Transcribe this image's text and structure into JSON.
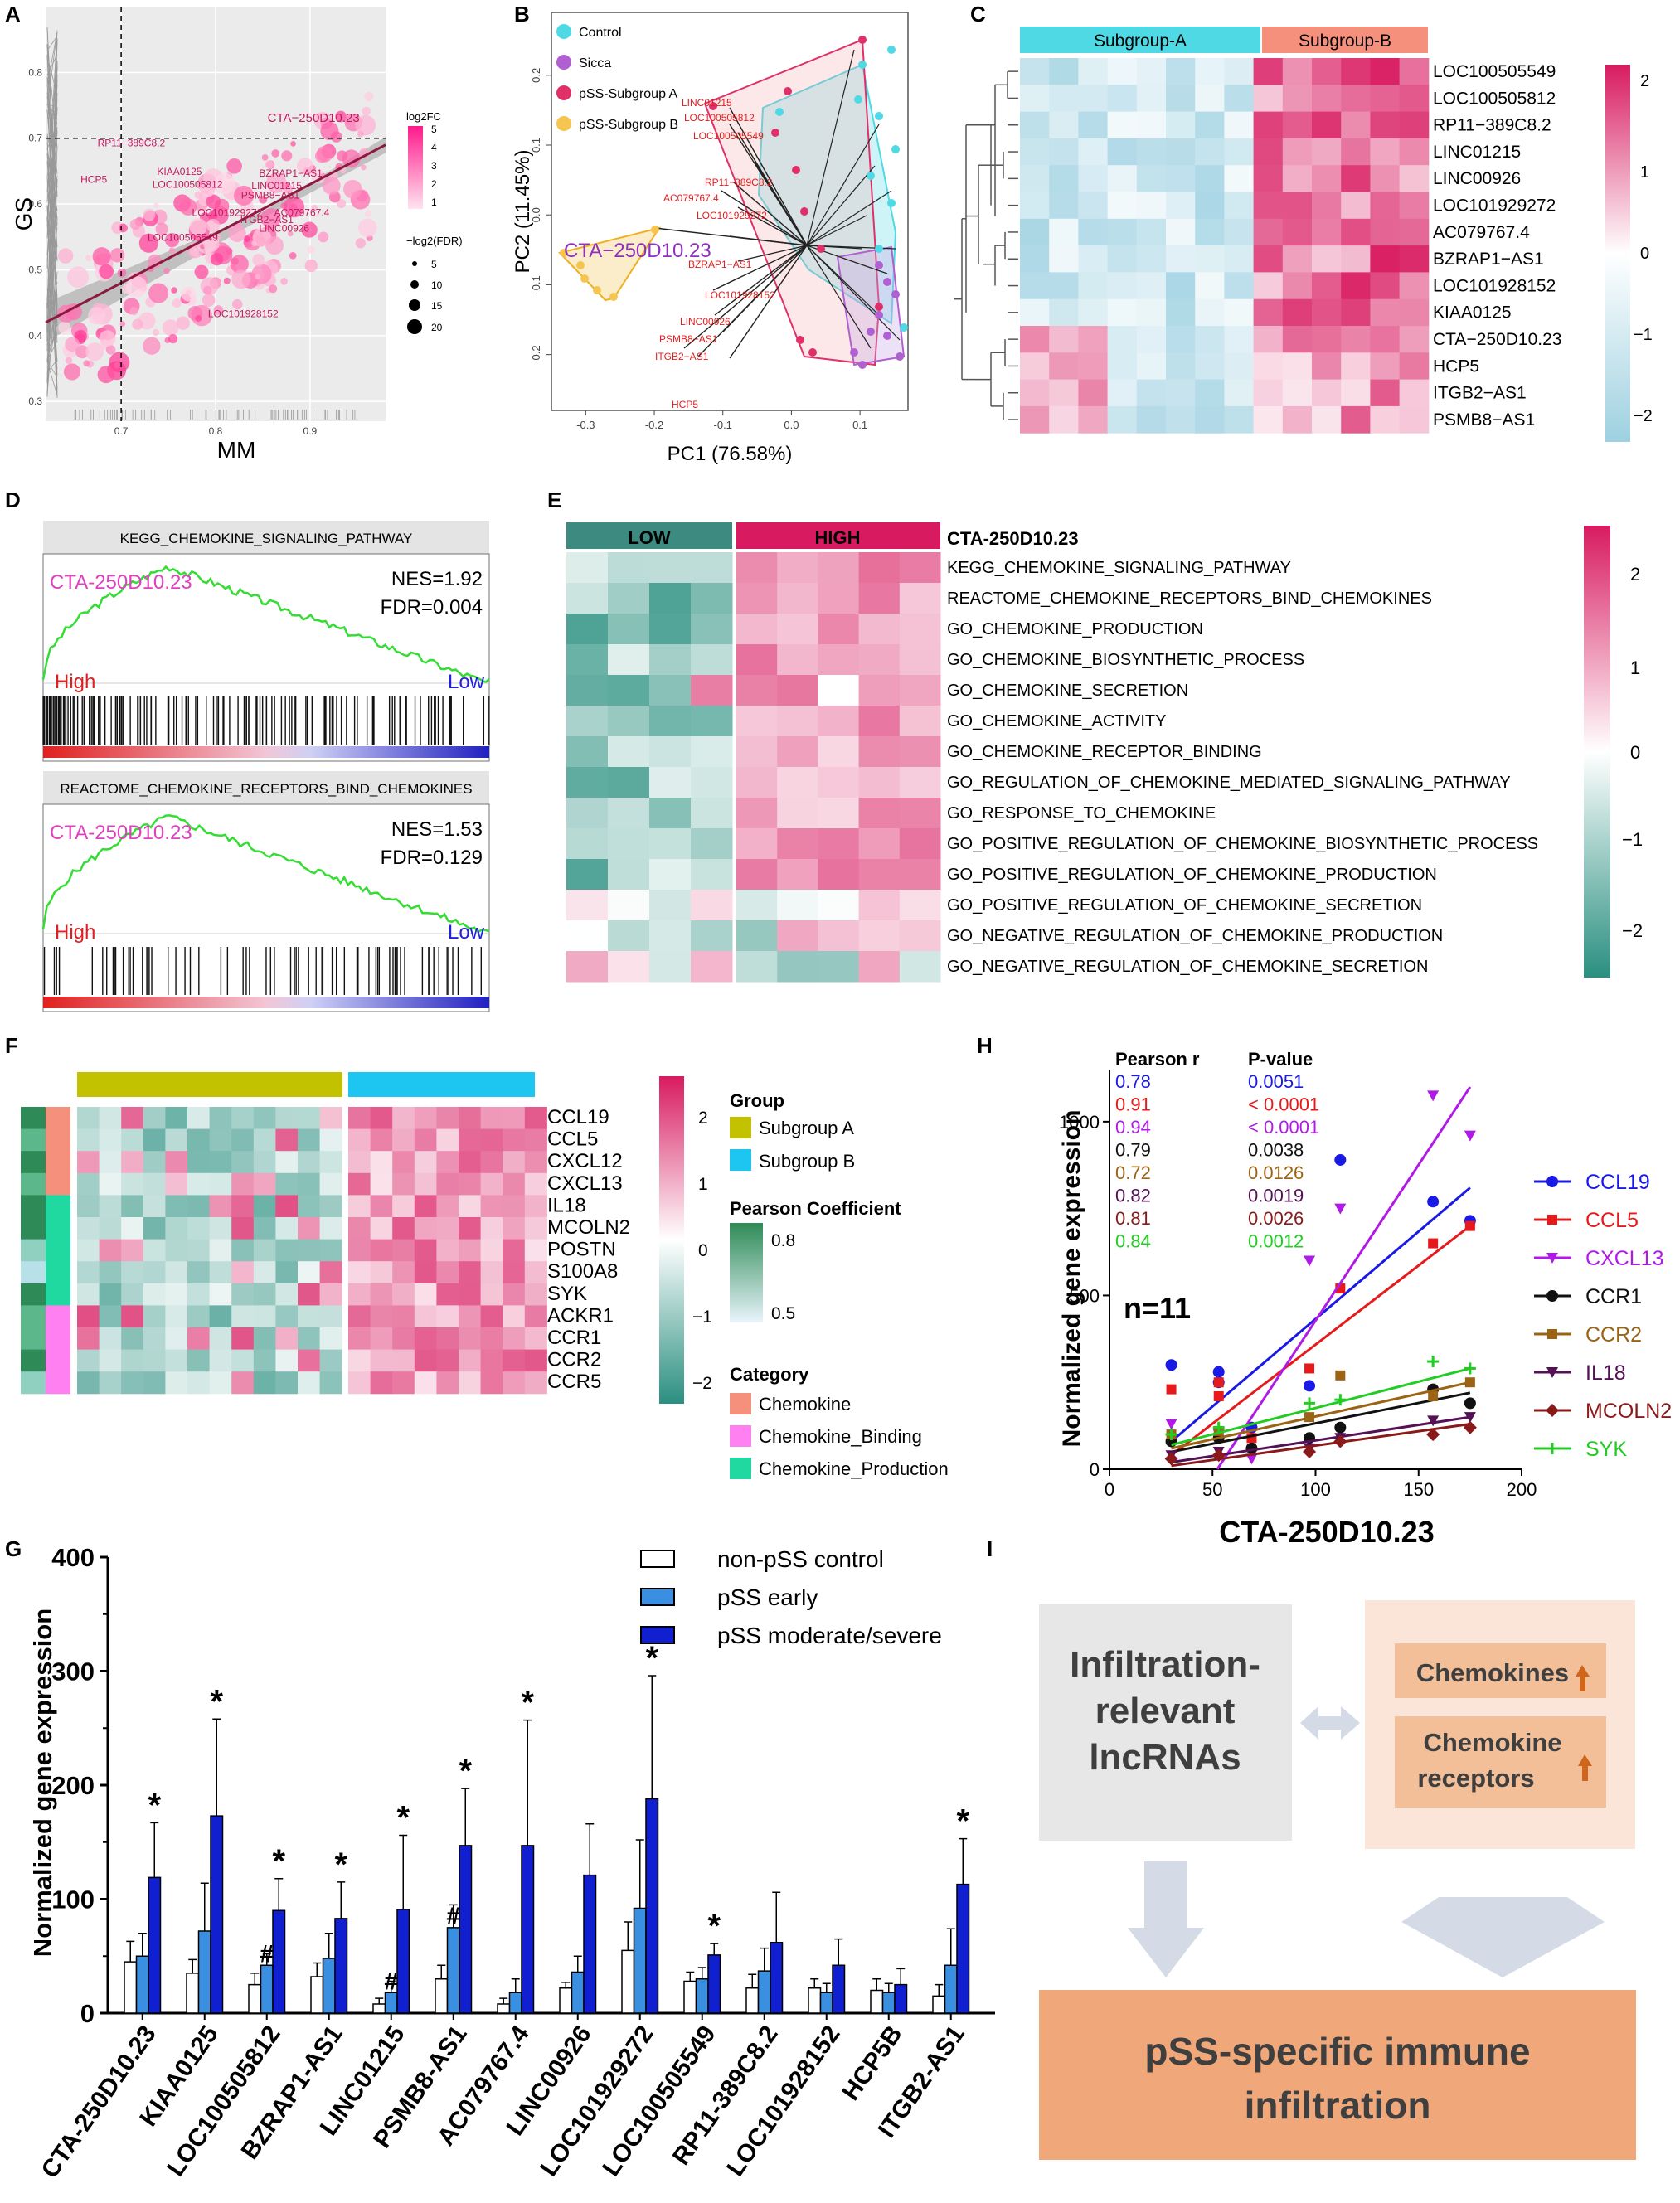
{
  "panel_labels": [
    "A",
    "B",
    "C",
    "D",
    "E",
    "F",
    "G",
    "H",
    "I"
  ],
  "colors": {
    "heat_low": "#9ed0e0",
    "heat_mid": "#ffffff",
    "heat_high": "#d81b60",
    "teal_low": "#2a8f80",
    "subgroupA": "#4fd9e4",
    "subgroupB": "#f4907c",
    "groupA_bar": "#c2c200",
    "groupB_bar": "#1cc6f0",
    "pss_early": "#3a8fe0",
    "pss_mod": "#1020d0",
    "gsea_line": "#33dd33",
    "arrow": "#d4dbe6",
    "box_left": "#e7e7e7",
    "box_right_bg": "#fbe5d8",
    "box_right_item": "#f2bf98",
    "box_bottom": "#f0a87a",
    "up_arrow": "#d0661b"
  },
  "chart_data": [
    {
      "panel": "A",
      "type": "scatter",
      "xlabel": "MM",
      "ylabel": "GS",
      "xlim": [
        0.62,
        0.98
      ],
      "ylim": [
        0.27,
        0.9
      ],
      "xticks": [
        "0.7",
        "0.8",
        "0.9"
      ],
      "yticks": [
        "0.3",
        "0.4",
        "0.5",
        "0.6",
        "0.7",
        "0.8"
      ],
      "thresholds": {
        "x": 0.7,
        "y": 0.7
      },
      "legend_color_title": "log2FC",
      "legend_color_ticks": [
        "5",
        "4",
        "3",
        "2",
        "1"
      ],
      "legend_size_title": "−log2(FDR)",
      "legend_size_ticks": [
        "5",
        "10",
        "15",
        "20"
      ],
      "labels": [
        {
          "text": "CTA−250D10.23",
          "x": 0.855,
          "y": 0.725
        },
        {
          "text": "RP11−389C8.2",
          "x": 0.675,
          "y": 0.688
        },
        {
          "text": "HCP5",
          "x": 0.657,
          "y": 0.632
        },
        {
          "text": "KIAA0125",
          "x": 0.738,
          "y": 0.644
        },
        {
          "text": "BZRAP1−AS1",
          "x": 0.846,
          "y": 0.642
        },
        {
          "text": "LOC100505812",
          "x": 0.733,
          "y": 0.625
        },
        {
          "text": "LINC01215",
          "x": 0.838,
          "y": 0.623
        },
        {
          "text": "PSMB8−AS1",
          "x": 0.827,
          "y": 0.608
        },
        {
          "text": "AC079767.4",
          "x": 0.862,
          "y": 0.582
        },
        {
          "text": "LOC101929272",
          "x": 0.775,
          "y": 0.582
        },
        {
          "text": "ITGB2−AS1",
          "x": 0.826,
          "y": 0.571
        },
        {
          "text": "LINC00926",
          "x": 0.846,
          "y": 0.558
        },
        {
          "text": "LOC100505549",
          "x": 0.728,
          "y": 0.544
        },
        {
          "text": "LOC101928152",
          "x": 0.792,
          "y": 0.428
        }
      ],
      "fit": {
        "x1": 0.62,
        "y1": 0.42,
        "x2": 0.98,
        "y2": 0.69
      }
    },
    {
      "panel": "B",
      "type": "scatter",
      "xlabel": "PC1 (76.58%)",
      "ylabel": "PC2 (11.45%)",
      "xlim": [
        -0.35,
        0.17
      ],
      "ylim": [
        -0.28,
        0.29
      ],
      "xticks": [
        "-0.3",
        "-0.2",
        "-0.1",
        "0.0",
        "0.1"
      ],
      "yticks": [
        "-0.2",
        "-0.1",
        "0.0",
        "0.1",
        "0.2"
      ],
      "legend": [
        "Control",
        "Sicca",
        "pSS-Subgroup A",
        "pSS-Subgroup B"
      ],
      "highlight": "CTA−250D10.23",
      "loadings": [
        "LINC01215",
        "LOC100505812",
        "LOC100505549",
        "RP11−389C8.2",
        "AC079767.4",
        "LOC101929272",
        "BZRAP1−AS1",
        "LOC101928152",
        "LINC00926",
        "PSMB8−AS1",
        "ITGB2−AS1",
        "HCP5"
      ]
    },
    {
      "panel": "C",
      "type": "heatmap",
      "groups": [
        "Subgroup-A",
        "Subgroup-B"
      ],
      "rows": [
        "LOC100505549",
        "LOC100505812",
        "RP11−389C8.2",
        "LINC01215",
        "LINC00926",
        "LOC101929272",
        "AC079767.4",
        "BZRAP1−AS1",
        "LOC101928152",
        "KIAA0125",
        "CTA−250D10.23",
        "HCP5",
        "ITGB2−AS1",
        "PSMB8−AS1"
      ],
      "colorbar_ticks": [
        "2",
        "1",
        "0",
        "−1",
        "−2"
      ]
    },
    {
      "panel": "D",
      "type": "line",
      "plots": [
        {
          "title": "KEGG_CHEMOKINE_SIGNALING_PATHWAY",
          "gene": "CTA-250D10.23",
          "nes": "NES=1.92",
          "fdr": "FDR=0.004",
          "high": "High",
          "low": "Low"
        },
        {
          "title": "REACTOME_CHEMOKINE_RECEPTORS_BIND_CHEMOKINES",
          "gene": "CTA-250D10.23",
          "nes": "NES=1.53",
          "fdr": "FDR=0.129",
          "high": "High",
          "low": "Low"
        }
      ]
    },
    {
      "panel": "E",
      "type": "heatmap",
      "groups": [
        "LOW",
        "HIGH"
      ],
      "gene": "CTA-250D10.23",
      "rows": [
        "KEGG_CHEMOKINE_SIGNALING_PATHWAY",
        "REACTOME_CHEMOKINE_RECEPTORS_BIND_CHEMOKINES",
        "GO_CHEMOKINE_PRODUCTION",
        "GO_CHEMOKINE_BIOSYNTHETIC_PROCESS",
        "GO_CHEMOKINE_SECRETION",
        "GO_CHEMOKINE_ACTIVITY",
        "GO_CHEMOKINE_RECEPTOR_BINDING",
        "GO_REGULATION_OF_CHEMOKINE_MEDIATED_SIGNALING_PATHWAY",
        "GO_RESPONSE_TO_CHEMOKINE",
        "GO_POSITIVE_REGULATION_OF_CHEMOKINE_BIOSYNTHETIC_PROCESS",
        "GO_POSITIVE_REGULATION_OF_CHEMOKINE_PRODUCTION",
        "GO_POSITIVE_REGULATION_OF_CHEMOKINE_SECRETION",
        "GO_NEGATIVE_REGULATION_OF_CHEMOKINE_PRODUCTION",
        "GO_NEGATIVE_REGULATION_OF_CHEMOKINE_SECRETION"
      ],
      "colorbar_ticks": [
        "2",
        "1",
        "0",
        "−1",
        "−2"
      ]
    },
    {
      "panel": "F",
      "type": "heatmap",
      "rows": [
        "CCL19",
        "CCL5",
        "CXCL12",
        "CXCL13",
        "IL18",
        "MCOLN2",
        "POSTN",
        "S100A8",
        "SYK",
        "ACKR1",
        "CCR1",
        "CCR2",
        "CCR5"
      ],
      "colorbar_ticks": [
        "2",
        "1",
        "0",
        "−1",
        "−2"
      ],
      "legend_group_title": "Group",
      "legend_groups": [
        "Subgroup A",
        "Subgroup B"
      ],
      "legend_pearson_title": "Pearson Coefficient",
      "legend_pearson_ticks": [
        "0.8",
        "0.5"
      ],
      "legend_category_title": "Category",
      "legend_categories": [
        "Chemokine",
        "Chemokine_Binding",
        "Chemokine_Production"
      ]
    },
    {
      "panel": "G",
      "type": "bar",
      "ylabel": "Normalized gene expression",
      "ylim": [
        0,
        400
      ],
      "yticks": [
        "0",
        "100",
        "200",
        "300",
        "400"
      ],
      "categories": [
        "CTA-250D10.23",
        "KIAA0125",
        "LOC100505812",
        "BZRAP1-AS1",
        "LINC01215",
        "PSMB8-AS1",
        "AC079767.4",
        "LINC00926",
        "LOC101929272",
        "LOC100505549",
        "RP11-389C8.2",
        "LOC101928152",
        "HCP5B",
        "ITGB2-AS1"
      ],
      "series": [
        {
          "name": "non-pSS control",
          "values": [
            45,
            35,
            25,
            32,
            8,
            30,
            8,
            22,
            55,
            28,
            22,
            22,
            20,
            15
          ],
          "errors": [
            18,
            12,
            10,
            12,
            5,
            12,
            5,
            5,
            25,
            8,
            12,
            8,
            10,
            10
          ]
        },
        {
          "name": "pSS early",
          "values": [
            50,
            72,
            42,
            48,
            18,
            75,
            18,
            36,
            92,
            30,
            37,
            18,
            18,
            42
          ],
          "errors": [
            20,
            42,
            10,
            22,
            10,
            20,
            12,
            14,
            60,
            10,
            20,
            8,
            8,
            32
          ]
        },
        {
          "name": "pSS moderate/severe",
          "values": [
            119,
            173,
            90,
            83,
            91,
            147,
            147,
            121,
            188,
            51,
            62,
            42,
            25,
            113
          ],
          "errors": [
            48,
            85,
            28,
            32,
            65,
            50,
            110,
            45,
            108,
            10,
            44,
            23,
            14,
            40
          ]
        }
      ],
      "markers": [
        {
          "cat": 0,
          "series": 2,
          "text": "*"
        },
        {
          "cat": 1,
          "series": 2,
          "text": "*"
        },
        {
          "cat": 2,
          "series": 1,
          "text": "#"
        },
        {
          "cat": 2,
          "series": 2,
          "text": "*"
        },
        {
          "cat": 3,
          "series": 2,
          "text": "*"
        },
        {
          "cat": 4,
          "series": 1,
          "text": "#"
        },
        {
          "cat": 4,
          "series": 2,
          "text": "*"
        },
        {
          "cat": 5,
          "series": 1,
          "text": "#"
        },
        {
          "cat": 5,
          "series": 2,
          "text": "*"
        },
        {
          "cat": 6,
          "series": 2,
          "text": "*"
        },
        {
          "cat": 8,
          "series": 2,
          "text": "*"
        },
        {
          "cat": 9,
          "series": 2,
          "text": "*"
        },
        {
          "cat": 13,
          "series": 2,
          "text": "*"
        }
      ]
    },
    {
      "panel": "H",
      "type": "scatter",
      "xlabel": "CTA-250D10.23",
      "ylabel": "Normalized gene expression",
      "xlim": [
        0,
        200
      ],
      "ylim": [
        0,
        1150
      ],
      "xticks": [
        "0",
        "50",
        "100",
        "150",
        "200"
      ],
      "yticks": [
        "0",
        "500",
        "1000"
      ],
      "n_label": "n=11",
      "table_headers": [
        "Pearson r",
        "P-value"
      ],
      "series": [
        {
          "name": "CCL19",
          "color": "#1a1ae6",
          "r": "0.78",
          "p": "0.0051",
          "marker": "circle",
          "fit": [
            30,
            80,
            175,
            810
          ],
          "points": [
            [
              30,
              300
            ],
            [
              53,
              280
            ],
            [
              53,
              250
            ],
            [
              112,
              890
            ],
            [
              157,
              770
            ],
            [
              175,
              715
            ],
            [
              69,
              120
            ],
            [
              97,
              240
            ]
          ]
        },
        {
          "name": "CCL5",
          "color": "#e61a1a",
          "r": "0.91",
          "p": "< 0.0001",
          "marker": "square",
          "fit": [
            30,
            40,
            175,
            700
          ],
          "points": [
            [
              30,
              230
            ],
            [
              53,
              210
            ],
            [
              53,
              250
            ],
            [
              112,
              520
            ],
            [
              157,
              650
            ],
            [
              175,
              700
            ],
            [
              97,
              290
            ],
            [
              69,
              90
            ]
          ]
        },
        {
          "name": "CXCL13",
          "color": "#b01ae6",
          "r": "0.94",
          "p": "< 0.0001",
          "marker": "tri",
          "fit": [
            30,
            -200,
            175,
            1100
          ],
          "points": [
            [
              30,
              130
            ],
            [
              53,
              100
            ],
            [
              69,
              30
            ],
            [
              97,
              600
            ],
            [
              112,
              750
            ],
            [
              157,
              1075
            ],
            [
              175,
              960
            ]
          ]
        },
        {
          "name": "CCR1",
          "color": "#111111",
          "r": "0.79",
          "p": "0.0038",
          "marker": "circle",
          "fit": [
            30,
            50,
            175,
            220
          ],
          "points": [
            [
              30,
              80
            ],
            [
              53,
              90
            ],
            [
              69,
              60
            ],
            [
              97,
              90
            ],
            [
              112,
              120
            ],
            [
              157,
              230
            ],
            [
              175,
              190
            ]
          ]
        },
        {
          "name": "CCR2",
          "color": "#9a6414",
          "r": "0.72",
          "p": "0.0126",
          "marker": "square",
          "fit": [
            30,
            60,
            175,
            250
          ],
          "points": [
            [
              30,
              100
            ],
            [
              53,
              110
            ],
            [
              97,
              150
            ],
            [
              112,
              270
            ],
            [
              157,
              210
            ],
            [
              175,
              250
            ]
          ]
        },
        {
          "name": "IL18",
          "color": "#551155",
          "r": "0.82",
          "p": "0.0019",
          "marker": "tri",
          "fit": [
            30,
            20,
            175,
            150
          ],
          "points": [
            [
              30,
              40
            ],
            [
              53,
              50
            ],
            [
              97,
              60
            ],
            [
              112,
              90
            ],
            [
              157,
              140
            ],
            [
              175,
              150
            ]
          ]
        },
        {
          "name": "MCOLN2",
          "color": "#8a1a1a",
          "r": "0.81",
          "p": "0.0026",
          "marker": "diamond",
          "fit": [
            30,
            10,
            175,
            130
          ],
          "points": [
            [
              30,
              30
            ],
            [
              53,
              40
            ],
            [
              97,
              50
            ],
            [
              112,
              80
            ],
            [
              157,
              100
            ],
            [
              175,
              120
            ]
          ]
        },
        {
          "name": "SYK",
          "color": "#22cc22",
          "r": "0.84",
          "p": "0.0012",
          "marker": "cross",
          "fit": [
            30,
            70,
            175,
            290
          ],
          "points": [
            [
              30,
              100
            ],
            [
              53,
              120
            ],
            [
              97,
              190
            ],
            [
              112,
              200
            ],
            [
              157,
              310
            ],
            [
              175,
              290
            ]
          ]
        }
      ]
    }
  ],
  "panel_i": {
    "left_box": [
      "Infiltration-",
      "relevant",
      "lncRNAs"
    ],
    "item1": "Chemokines",
    "item2_line1": "Chemokine",
    "item2_line2": "receptors",
    "bottom_line1": "pSS-specific immune",
    "bottom_line2": "infiltration"
  }
}
